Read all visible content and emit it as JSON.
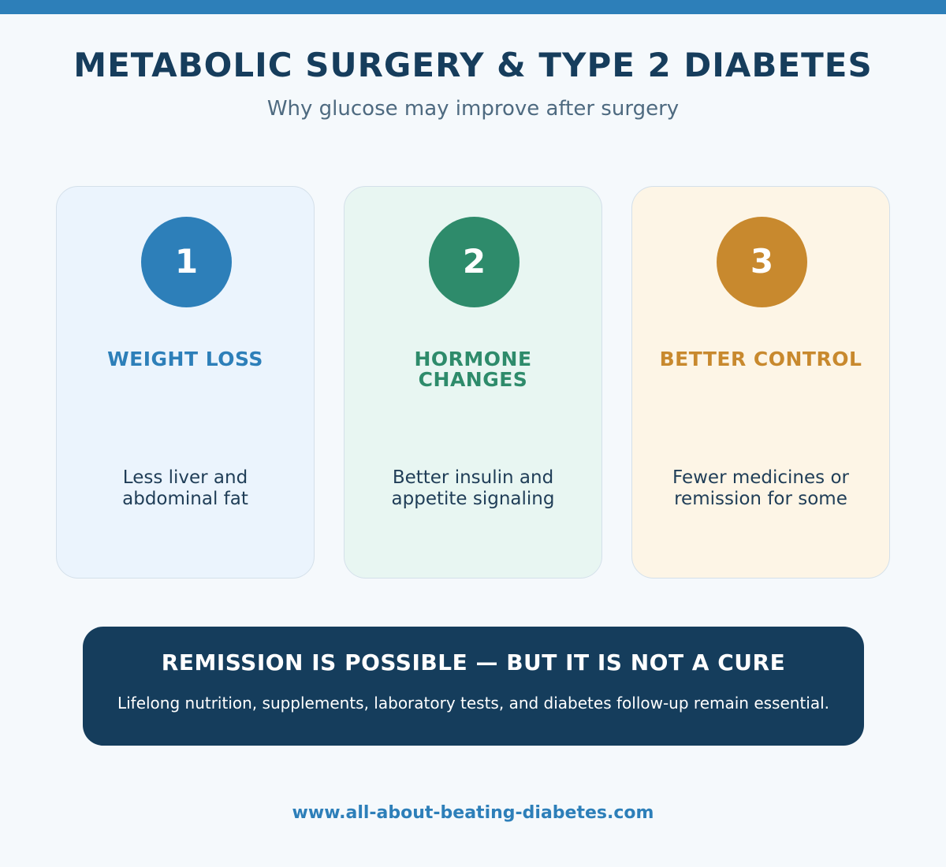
{
  "header": {
    "title": "METABOLIC SURGERY & TYPE 2 DIABETES",
    "subtitle": "Why glucose may improve after surgery"
  },
  "cards": [
    {
      "number": "1",
      "heading": "WEIGHT LOSS",
      "text": "Less liver and\nabdominal fat",
      "accent": "#2d7fb9",
      "background": "#ebf4fd"
    },
    {
      "number": "2",
      "heading": "HORMONE\nCHANGES",
      "text": "Better insulin and\nappetite signaling",
      "accent": "#2e8b6b",
      "background": "#e8f6f2"
    },
    {
      "number": "3",
      "heading": "BETTER CONTROL",
      "text": "Fewer medicines or\nremission for some",
      "accent": "#c8892e",
      "background": "#fdf5e6"
    }
  ],
  "banner": {
    "title": "REMISSION IS POSSIBLE — BUT IT IS NOT A CURE",
    "text": "Lifelong nutrition, supplements, laboratory tests, and diabetes follow-up remain essential.",
    "background": "#153d5c"
  },
  "footer": {
    "url": "www.all-about-beating-diabetes.com"
  },
  "colors": {
    "top_bar": "#2d7fb9",
    "title": "#163d5c",
    "page_background": "#f5f9fc"
  }
}
